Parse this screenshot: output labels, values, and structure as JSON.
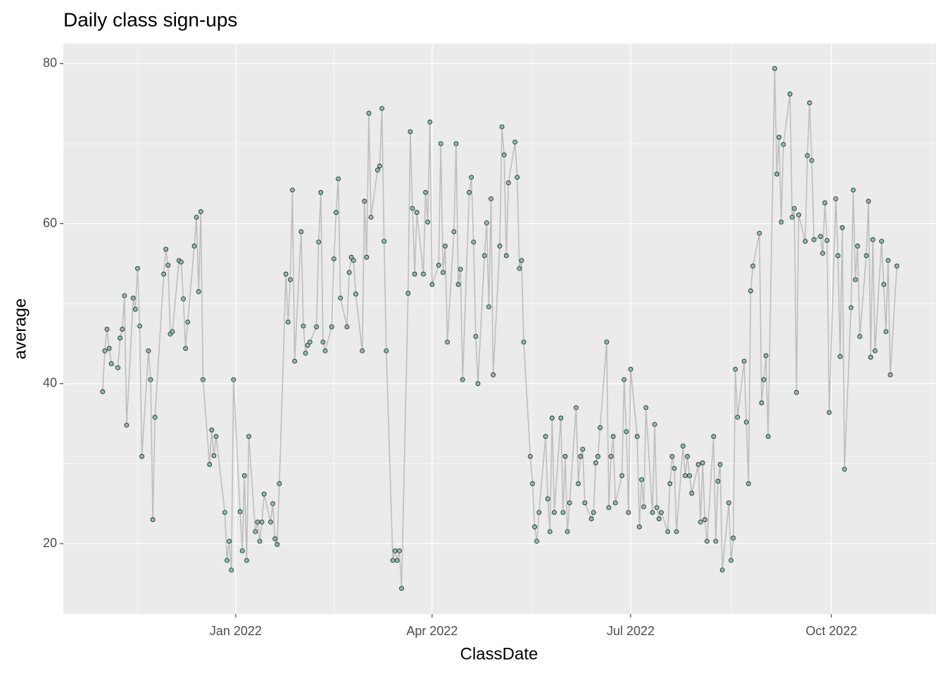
{
  "chart_data": {
    "type": "line",
    "title": "Daily class sign-ups",
    "x_label": "ClassDate",
    "y_label": "average",
    "x": [
      "2021-11-01",
      "2021-11-02",
      "2021-11-03",
      "2021-11-04",
      "2021-11-05",
      "2021-11-08",
      "2021-11-09",
      "2021-11-10",
      "2021-11-11",
      "2021-11-12",
      "2021-11-15",
      "2021-11-16",
      "2021-11-17",
      "2021-11-18",
      "2021-11-19",
      "2021-11-22",
      "2021-11-23",
      "2021-11-24",
      "2021-11-25",
      "2021-11-29",
      "2021-11-30",
      "2021-12-01",
      "2021-12-02",
      "2021-12-03",
      "2021-12-06",
      "2021-12-07",
      "2021-12-08",
      "2021-12-09",
      "2021-12-10",
      "2021-12-13",
      "2021-12-14",
      "2021-12-15",
      "2021-12-16",
      "2021-12-17",
      "2021-12-20",
      "2021-12-21",
      "2021-12-22",
      "2021-12-23",
      "2021-12-27",
      "2021-12-28",
      "2021-12-29",
      "2021-12-30",
      "2021-12-31",
      "2022-01-03",
      "2022-01-04",
      "2022-01-05",
      "2022-01-06",
      "2022-01-07",
      "2022-01-10",
      "2022-01-11",
      "2022-01-12",
      "2022-01-13",
      "2022-01-14",
      "2022-01-17",
      "2022-01-18",
      "2022-01-19",
      "2022-01-20",
      "2022-01-21",
      "2022-01-24",
      "2022-01-25",
      "2022-01-26",
      "2022-01-27",
      "2022-01-28",
      "2022-01-31",
      "2022-02-01",
      "2022-02-02",
      "2022-02-03",
      "2022-02-04",
      "2022-02-07",
      "2022-02-08",
      "2022-02-09",
      "2022-02-10",
      "2022-02-11",
      "2022-02-14",
      "2022-02-15",
      "2022-02-16",
      "2022-02-17",
      "2022-02-18",
      "2022-02-21",
      "2022-02-22",
      "2022-02-23",
      "2022-02-24",
      "2022-02-25",
      "2022-02-28",
      "2022-03-01",
      "2022-03-02",
      "2022-03-03",
      "2022-03-04",
      "2022-03-07",
      "2022-03-08",
      "2022-03-09",
      "2022-03-10",
      "2022-03-11",
      "2022-03-14",
      "2022-03-15",
      "2022-03-16",
      "2022-03-17",
      "2022-03-18",
      "2022-03-21",
      "2022-03-22",
      "2022-03-23",
      "2022-03-24",
      "2022-03-25",
      "2022-03-28",
      "2022-03-29",
      "2022-03-30",
      "2022-03-31",
      "2022-04-01",
      "2022-04-04",
      "2022-04-05",
      "2022-04-06",
      "2022-04-07",
      "2022-04-08",
      "2022-04-11",
      "2022-04-12",
      "2022-04-13",
      "2022-04-14",
      "2022-04-15",
      "2022-04-18",
      "2022-04-19",
      "2022-04-20",
      "2022-04-21",
      "2022-04-22",
      "2022-04-25",
      "2022-04-26",
      "2022-04-27",
      "2022-04-28",
      "2022-04-29",
      "2022-05-02",
      "2022-05-03",
      "2022-05-04",
      "2022-05-05",
      "2022-05-06",
      "2022-05-09",
      "2022-05-10",
      "2022-05-11",
      "2022-05-12",
      "2022-05-13",
      "2022-05-16",
      "2022-05-17",
      "2022-05-18",
      "2022-05-19",
      "2022-05-20",
      "2022-05-23",
      "2022-05-24",
      "2022-05-25",
      "2022-05-26",
      "2022-05-27",
      "2022-05-30",
      "2022-05-31",
      "2022-06-01",
      "2022-06-02",
      "2022-06-03",
      "2022-06-06",
      "2022-06-07",
      "2022-06-08",
      "2022-06-09",
      "2022-06-10",
      "2022-06-13",
      "2022-06-14",
      "2022-06-15",
      "2022-06-16",
      "2022-06-17",
      "2022-06-20",
      "2022-06-21",
      "2022-06-22",
      "2022-06-23",
      "2022-06-24",
      "2022-06-27",
      "2022-06-28",
      "2022-06-29",
      "2022-06-30",
      "2022-07-01",
      "2022-07-04",
      "2022-07-05",
      "2022-07-06",
      "2022-07-07",
      "2022-07-08",
      "2022-07-11",
      "2022-07-12",
      "2022-07-13",
      "2022-07-14",
      "2022-07-15",
      "2022-07-18",
      "2022-07-19",
      "2022-07-20",
      "2022-07-21",
      "2022-07-22",
      "2022-07-25",
      "2022-07-26",
      "2022-07-27",
      "2022-07-28",
      "2022-07-29",
      "2022-08-01",
      "2022-08-02",
      "2022-08-03",
      "2022-08-04",
      "2022-08-05",
      "2022-08-08",
      "2022-08-09",
      "2022-08-10",
      "2022-08-11",
      "2022-08-12",
      "2022-08-15",
      "2022-08-16",
      "2022-08-17",
      "2022-08-18",
      "2022-08-19",
      "2022-08-22",
      "2022-08-23",
      "2022-08-24",
      "2022-08-25",
      "2022-08-26",
      "2022-08-29",
      "2022-08-30",
      "2022-08-31",
      "2022-09-01",
      "2022-09-02",
      "2022-09-05",
      "2022-09-06",
      "2022-09-07",
      "2022-09-08",
      "2022-09-09",
      "2022-09-12",
      "2022-09-13",
      "2022-09-14",
      "2022-09-15",
      "2022-09-16",
      "2022-09-19",
      "2022-09-20",
      "2022-09-21",
      "2022-09-22",
      "2022-09-23",
      "2022-09-26",
      "2022-09-27",
      "2022-09-28",
      "2022-09-29",
      "2022-09-30",
      "2022-10-03",
      "2022-10-04",
      "2022-10-05",
      "2022-10-06",
      "2022-10-07",
      "2022-10-10",
      "2022-10-11",
      "2022-10-12",
      "2022-10-13",
      "2022-10-14",
      "2022-10-17",
      "2022-10-18",
      "2022-10-19",
      "2022-10-20",
      "2022-10-21",
      "2022-10-24",
      "2022-10-25",
      "2022-10-26",
      "2022-10-27",
      "2022-10-28",
      "2022-10-31"
    ],
    "values": [
      39.0,
      44.1,
      46.8,
      44.4,
      42.5,
      42.0,
      45.7,
      46.8,
      51.0,
      34.8,
      50.7,
      49.3,
      54.4,
      47.2,
      30.9,
      44.1,
      40.5,
      23.0,
      35.8,
      53.7,
      56.8,
      54.8,
      46.2,
      46.5,
      55.4,
      55.2,
      50.6,
      44.4,
      47.7,
      57.2,
      60.8,
      51.5,
      61.5,
      40.5,
      29.9,
      34.2,
      31.0,
      33.4,
      23.9,
      17.9,
      20.3,
      16.7,
      40.5,
      24.0,
      19.1,
      28.5,
      17.9,
      33.4,
      21.5,
      22.7,
      20.3,
      22.7,
      26.2,
      22.7,
      25.0,
      20.6,
      19.9,
      27.5,
      53.7,
      47.7,
      53.0,
      64.2,
      42.8,
      59.0,
      47.2,
      43.8,
      44.8,
      45.2,
      47.1,
      57.7,
      63.9,
      45.2,
      44.1,
      47.1,
      55.6,
      61.4,
      65.6,
      50.7,
      47.1,
      53.9,
      55.8,
      55.4,
      51.2,
      44.1,
      62.8,
      55.8,
      73.8,
      60.8,
      66.7,
      67.2,
      74.4,
      57.8,
      44.1,
      17.9,
      19.1,
      17.9,
      19.1,
      14.4,
      51.3,
      71.5,
      61.9,
      53.7,
      61.4,
      53.7,
      63.9,
      60.2,
      72.7,
      52.4,
      54.8,
      70.0,
      53.9,
      57.2,
      45.2,
      59.0,
      70.0,
      52.4,
      54.3,
      40.5,
      63.9,
      65.8,
      57.7,
      45.9,
      40.0,
      56.0,
      60.1,
      49.6,
      63.1,
      41.1,
      57.2,
      72.1,
      68.6,
      56.0,
      65.1,
      70.2,
      65.8,
      54.4,
      55.4,
      45.2,
      30.9,
      27.5,
      22.1,
      20.3,
      23.9,
      33.4,
      25.6,
      21.5,
      35.7,
      23.9,
      35.7,
      23.9,
      30.9,
      21.5,
      25.1,
      37.0,
      27.5,
      30.9,
      31.8,
      25.1,
      23.1,
      23.9,
      30.1,
      30.9,
      34.5,
      45.2,
      24.5,
      30.9,
      33.4,
      25.1,
      28.5,
      40.5,
      34.0,
      23.9,
      41.8,
      33.4,
      22.1,
      28.0,
      24.6,
      37.0,
      23.9,
      34.9,
      24.5,
      23.1,
      23.9,
      21.5,
      27.5,
      30.9,
      29.4,
      21.5,
      32.2,
      28.5,
      30.9,
      28.5,
      26.3,
      29.9,
      22.7,
      30.1,
      23.0,
      20.3,
      33.4,
      20.3,
      27.8,
      29.9,
      16.7,
      25.1,
      17.9,
      20.7,
      41.8,
      35.8,
      42.8,
      35.2,
      27.5,
      51.6,
      54.7,
      58.8,
      37.6,
      40.5,
      43.5,
      33.4,
      79.4,
      66.2,
      70.8,
      60.2,
      69.9,
      76.2,
      60.8,
      61.9,
      38.9,
      61.1,
      57.8,
      68.5,
      75.1,
      67.9,
      58.0,
      58.4,
      56.3,
      62.6,
      57.9,
      36.4,
      63.1,
      56.0,
      43.4,
      59.5,
      29.3,
      49.5,
      64.2,
      53.0,
      57.2,
      45.9,
      56.0,
      62.8,
      43.3,
      58.0,
      44.1,
      57.8,
      52.4,
      46.5,
      55.4,
      41.1,
      54.7
    ],
    "line_color": "#bebebe",
    "point_color": "#8dbfa8",
    "point_stroke": "#1a1a1a",
    "panel_color": "#ebebeb",
    "xlim": [
      "2021-10-14",
      "2022-11-18"
    ],
    "xticks": [
      {
        "value": "2022-01-01",
        "label": "Jan 2022"
      },
      {
        "value": "2022-04-01",
        "label": "Apr 2022"
      },
      {
        "value": "2022-07-01",
        "label": "Jul 2022"
      },
      {
        "value": "2022-10-01",
        "label": "Oct 2022"
      }
    ],
    "ylim": [
      11.2,
      82.5
    ],
    "yticks": [
      20,
      40,
      60,
      80
    ],
    "grid": true,
    "minor_grid": true
  }
}
